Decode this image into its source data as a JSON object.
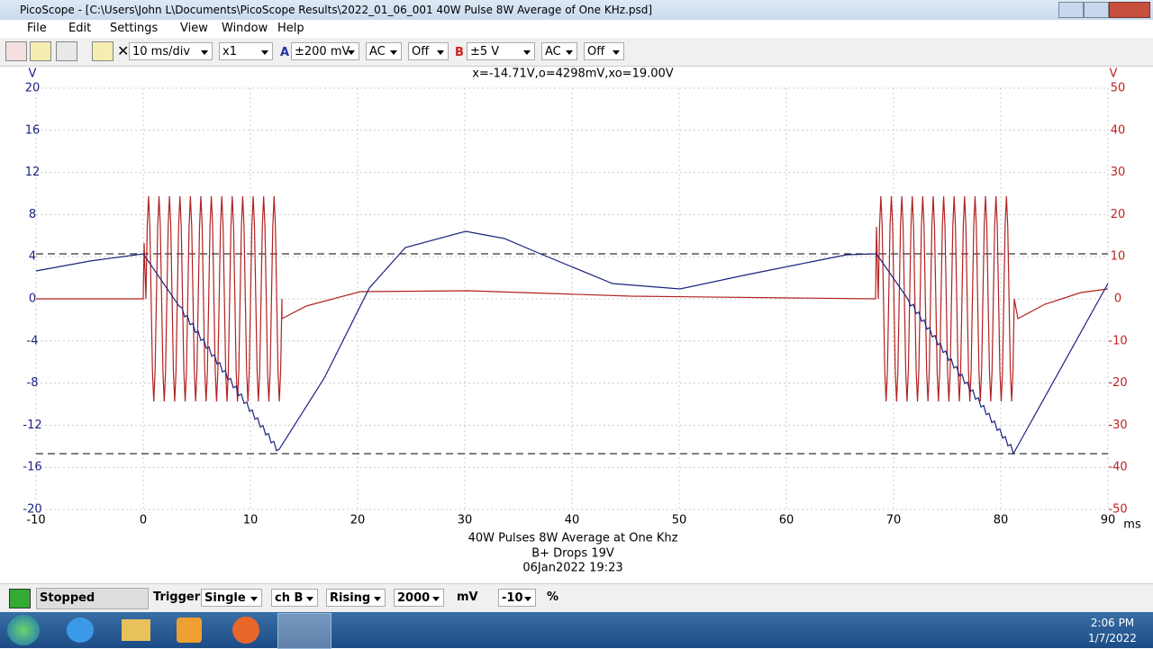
{
  "window": {
    "title": "PicoScope - [C:\\Users\\John L\\Documents\\PicoScope Results\\2022_01_06_001 40W Pulse 8W Average of One KHz.psd]"
  },
  "menu": [
    "File",
    "Edit",
    "Settings",
    "View",
    "Window",
    "Help"
  ],
  "toolbar": {
    "timebase": "10 ms/div",
    "zoom": "x1",
    "channel_a": {
      "label": "A",
      "range": "±200 mV",
      "coupling": "AC",
      "filter": "Off"
    },
    "channel_b": {
      "label": "B",
      "range": "±5 V",
      "coupling": "AC",
      "filter": "Off"
    }
  },
  "plot": {
    "readout": "x=-14.71V,o=4298mV,xo=19.00V",
    "left_unit": "V",
    "right_unit": "V",
    "x_unit": "ms",
    "xlim": [
      -10,
      90
    ],
    "xticks": [
      -10,
      0,
      10,
      20,
      30,
      40,
      50,
      60,
      70,
      80,
      90
    ],
    "ylim": [
      -20,
      20
    ],
    "yticks": [
      20,
      16,
      12,
      8,
      4,
      0,
      -4,
      -8,
      -12,
      -16,
      -20
    ],
    "y2lim": [
      -50,
      50
    ],
    "y2ticks": [
      50,
      40,
      30,
      20,
      10,
      0,
      -10,
      -20,
      -30,
      -40,
      -50
    ],
    "caption": [
      "40W Pulses 8W Average at One Khz",
      "B+ Drops 19V",
      "06Jan2022  19:23"
    ]
  },
  "status": {
    "state": "Stopped",
    "trigger_label": "Trigger",
    "mode": "Single",
    "source": "ch B",
    "edge": "Rising",
    "level": "2000",
    "level_unit": "mV",
    "delay": "-10",
    "delay_unit": "%"
  },
  "taskbar": {
    "time": "2:06 PM",
    "date": "1/7/2022"
  }
}
